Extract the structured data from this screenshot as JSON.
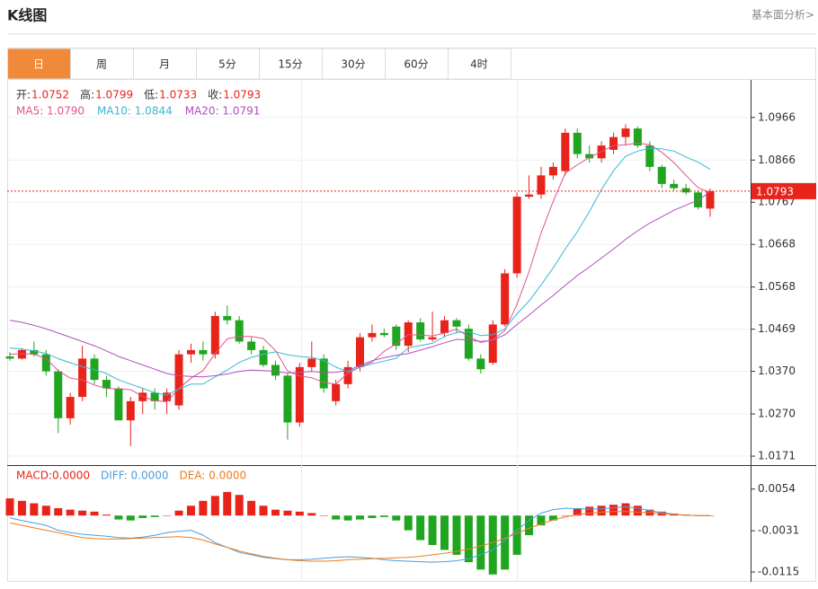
{
  "header": {
    "title": "K线图",
    "link": "基本面分析>"
  },
  "tabs": {
    "items": [
      "日",
      "周",
      "月",
      "5分",
      "15分",
      "30分",
      "60分",
      "4时"
    ],
    "active": 0
  },
  "chart_data": [
    {
      "type": "candlestick",
      "info": [
        {
          "label": "开:",
          "value": "1.0752"
        },
        {
          "label": "高:",
          "value": "1.0799"
        },
        {
          "label": "低:",
          "value": "1.0733"
        },
        {
          "label": "收:",
          "value": "1.0793"
        }
      ],
      "open": [
        1.0405,
        1.04,
        1.042,
        1.041,
        1.037,
        1.026,
        1.031,
        1.04,
        1.035,
        1.033,
        1.0255,
        1.03,
        1.032,
        1.03,
        1.029,
        1.041,
        1.042,
        1.041,
        1.05,
        1.049,
        1.044,
        1.042,
        1.0385,
        1.036,
        1.025,
        1.038,
        1.04,
        1.03,
        1.034,
        1.038,
        1.045,
        1.046,
        1.0475,
        1.043,
        1.0485,
        1.0445,
        1.046,
        1.049,
        1.047,
        1.04,
        1.039,
        1.048,
        1.06,
        1.078,
        1.0785,
        1.083,
        1.084,
        1.093,
        1.088,
        1.087,
        1.089,
        1.092,
        1.094,
        1.09,
        1.085,
        1.081,
        1.08,
        1.079,
        1.0752
      ],
      "high": [
        1.0415,
        1.0425,
        1.044,
        1.042,
        1.0375,
        1.032,
        1.043,
        1.041,
        1.036,
        1.0335,
        1.031,
        1.033,
        1.033,
        1.033,
        1.042,
        1.0435,
        1.044,
        1.051,
        1.0525,
        1.05,
        1.045,
        1.043,
        1.0395,
        1.0365,
        1.039,
        1.044,
        1.041,
        1.035,
        1.0395,
        1.046,
        1.048,
        1.047,
        1.048,
        1.049,
        1.0495,
        1.051,
        1.05,
        1.0495,
        1.048,
        1.041,
        1.049,
        1.061,
        1.079,
        1.083,
        1.085,
        1.086,
        1.094,
        1.094,
        1.09,
        1.091,
        1.093,
        1.095,
        1.0945,
        1.091,
        1.0855,
        1.082,
        1.081,
        1.0795,
        1.0799
      ],
      "low": [
        1.0395,
        1.0398,
        1.0405,
        1.036,
        1.0225,
        1.0245,
        1.03,
        1.034,
        1.031,
        1.026,
        1.0195,
        1.027,
        1.028,
        1.027,
        1.028,
        1.039,
        1.0395,
        1.04,
        1.048,
        1.0435,
        1.041,
        1.038,
        1.035,
        1.021,
        1.024,
        1.037,
        1.032,
        1.029,
        1.033,
        1.037,
        1.044,
        1.045,
        1.042,
        1.0415,
        1.044,
        1.044,
        1.045,
        1.046,
        1.0395,
        1.0365,
        1.0385,
        1.0475,
        1.059,
        1.0775,
        1.0775,
        1.082,
        1.083,
        1.087,
        1.086,
        1.086,
        1.088,
        1.09,
        1.0895,
        1.084,
        1.08,
        1.0795,
        1.0785,
        1.075,
        1.0733
      ],
      "close": [
        1.04,
        1.042,
        1.041,
        1.037,
        1.026,
        1.031,
        1.04,
        1.035,
        1.033,
        1.0255,
        1.03,
        1.032,
        1.03,
        1.032,
        1.041,
        1.042,
        1.041,
        1.05,
        1.049,
        1.044,
        1.042,
        1.0385,
        1.036,
        1.025,
        1.038,
        1.04,
        1.033,
        1.034,
        1.038,
        1.045,
        1.046,
        1.0455,
        1.043,
        1.0485,
        1.0445,
        1.045,
        1.049,
        1.0475,
        1.04,
        1.0375,
        1.048,
        1.06,
        1.078,
        1.0785,
        1.083,
        1.085,
        1.093,
        1.088,
        1.087,
        1.09,
        1.092,
        1.094,
        1.09,
        1.085,
        1.081,
        1.08,
        1.079,
        1.0755,
        1.0793
      ],
      "up_color": "#e8231a",
      "down_color": "#1fa51f",
      "series": [
        {
          "name": "MA5: 1.0790",
          "color": "#e0558a",
          "values": [
            1.041,
            1.0412,
            1.041,
            1.04,
            1.0372,
            1.0354,
            1.035,
            1.0338,
            1.033,
            1.0329,
            1.0327,
            1.0311,
            1.0301,
            1.0299,
            1.033,
            1.0354,
            1.0372,
            1.0412,
            1.0446,
            1.0452,
            1.0452,
            1.0447,
            1.0419,
            1.0371,
            1.0359,
            1.0355,
            1.0344,
            1.034,
            1.0366,
            1.038,
            1.0392,
            1.0417,
            1.0435,
            1.0456,
            1.0455,
            1.0453,
            1.046,
            1.0469,
            1.0452,
            1.0438,
            1.0444,
            1.0466,
            1.0527,
            1.0604,
            1.0695,
            1.0769,
            1.0835,
            1.0855,
            1.0872,
            1.0886,
            1.09,
            1.0902,
            1.0906,
            1.0902,
            1.0884,
            1.086,
            1.083,
            1.0801,
            1.079
          ]
        },
        {
          "name": "MA10: 1.0844",
          "color": "#3ab7d6",
          "values": [
            1.0425,
            1.0422,
            1.0418,
            1.0412,
            1.04,
            1.039,
            1.0381,
            1.0374,
            1.0365,
            1.035,
            1.034,
            1.033,
            1.032,
            1.0314,
            1.0329,
            1.034,
            1.034,
            1.0357,
            1.0373,
            1.0391,
            1.0403,
            1.041,
            1.0416,
            1.0409,
            1.0405,
            1.0403,
            1.0395,
            1.038,
            1.0369,
            1.038,
            1.0388,
            1.0394,
            1.0401,
            1.0425,
            1.0431,
            1.0436,
            1.0452,
            1.0461,
            1.0463,
            1.0454,
            1.0456,
            1.047,
            1.0505,
            1.0535,
            1.0573,
            1.0613,
            1.0657,
            1.0698,
            1.0745,
            1.0797,
            1.0841,
            1.0875,
            1.0887,
            1.0894,
            1.0892,
            1.0887,
            1.0873,
            1.0861,
            1.0844
          ]
        },
        {
          "name": "MA20: 1.0791",
          "color": "#b04fc0",
          "values": [
            1.049,
            1.0485,
            1.0478,
            1.047,
            1.046,
            1.045,
            1.044,
            1.043,
            1.0418,
            1.0405,
            1.0395,
            1.0385,
            1.0375,
            1.0365,
            1.036,
            1.0358,
            1.0357,
            1.036,
            1.0364,
            1.037,
            1.0373,
            1.0372,
            1.037,
            1.0366,
            1.0368,
            1.037,
            1.0367,
            1.0368,
            1.0372,
            1.0384,
            1.0395,
            1.0402,
            1.0408,
            1.0412,
            1.042,
            1.0428,
            1.0437,
            1.0445,
            1.0444,
            1.044,
            1.0443,
            1.0456,
            1.048,
            1.0502,
            1.0526,
            1.0548,
            1.0572,
            1.0595,
            1.0615,
            1.0636,
            1.0657,
            1.068,
            1.07,
            1.0718,
            1.0733,
            1.0748,
            1.076,
            1.0772,
            1.0791
          ]
        }
      ],
      "last_price": 1.0793,
      "ylim": [
        1.015,
        1.1052
      ],
      "yticks": [
        1.0966,
        1.0866,
        1.0767,
        1.0668,
        1.0568,
        1.0469,
        {
          "value": 1.037,
          "label": "1.0370"
        },
        {
          "value": 1.027,
          "label": "1.0270"
        },
        1.0171
      ],
      "grid": true
    },
    {
      "type": "macd",
      "info": "MACD:0.0000",
      "histogram": [
        0.0035,
        0.003,
        0.0025,
        0.002,
        0.0015,
        0.0012,
        0.001,
        0.0008,
        0.0002,
        -0.0008,
        -0.001,
        -0.0005,
        -0.0003,
        0.0,
        0.001,
        0.002,
        0.003,
        0.004,
        0.0048,
        0.0042,
        0.003,
        0.002,
        0.0012,
        0.001,
        0.0008,
        0.0005,
        0.0,
        -0.0008,
        -0.001,
        -0.0008,
        -0.0005,
        -0.0003,
        -0.001,
        -0.003,
        -0.005,
        -0.006,
        -0.007,
        -0.008,
        -0.0095,
        -0.011,
        -0.012,
        -0.011,
        -0.008,
        -0.004,
        -0.002,
        -0.001,
        0.0,
        0.0015,
        0.0018,
        0.002,
        0.0022,
        0.0025,
        0.002,
        0.0012,
        0.0008,
        0.0004,
        0.0002,
        -0.0001,
        0.0
      ],
      "up_color": "#e8231a",
      "down_color": "#1fa51f",
      "series": [
        {
          "name": "DIFF: 0.0000",
          "color": "#4a9ee0",
          "values": [
            -0.0005,
            -0.001,
            -0.0015,
            -0.002,
            -0.003,
            -0.0035,
            -0.0038,
            -0.004,
            -0.0042,
            -0.0045,
            -0.0046,
            -0.0044,
            -0.004,
            -0.0035,
            -0.0032,
            -0.003,
            -0.004,
            -0.0055,
            -0.0065,
            -0.0075,
            -0.008,
            -0.0085,
            -0.0088,
            -0.009,
            -0.009,
            -0.0089,
            -0.0087,
            -0.0085,
            -0.0084,
            -0.0085,
            -0.0087,
            -0.009,
            -0.0092,
            -0.0093,
            -0.0094,
            -0.0095,
            -0.0094,
            -0.0092,
            -0.0088,
            -0.008,
            -0.007,
            -0.005,
            -0.003,
            -0.001,
            0.0005,
            0.0012,
            0.0015,
            0.0014,
            0.0013,
            0.0014,
            0.0016,
            0.0018,
            0.0015,
            0.001,
            0.0006,
            0.0003,
            0.0001,
            0.0,
            0.0
          ]
        },
        {
          "name": "DEA: 0.0000",
          "color": "#f07c1a",
          "values": [
            -0.0015,
            -0.002,
            -0.0025,
            -0.003,
            -0.0035,
            -0.004,
            -0.0045,
            -0.0047,
            -0.0048,
            -0.0048,
            -0.0047,
            -0.0046,
            -0.0045,
            -0.0044,
            -0.0043,
            -0.0045,
            -0.005,
            -0.0058,
            -0.0065,
            -0.0072,
            -0.0078,
            -0.0083,
            -0.0087,
            -0.009,
            -0.0092,
            -0.0093,
            -0.0093,
            -0.0092,
            -0.009,
            -0.0089,
            -0.0088,
            -0.0087,
            -0.0086,
            -0.0085,
            -0.0083,
            -0.008,
            -0.0077,
            -0.0073,
            -0.0068,
            -0.0062,
            -0.0055,
            -0.0046,
            -0.0036,
            -0.0026,
            -0.0017,
            -0.0009,
            -0.0003,
            0.0002,
            0.0005,
            0.0007,
            0.0008,
            0.0008,
            0.0007,
            0.0006,
            0.0004,
            0.0002,
            0.0001,
            0.0,
            0.0
          ]
        }
      ],
      "ylim": [
        -0.0135,
        0.0101
      ],
      "yticks": [
        0.0054,
        -0.0031,
        -0.0115
      ]
    }
  ]
}
